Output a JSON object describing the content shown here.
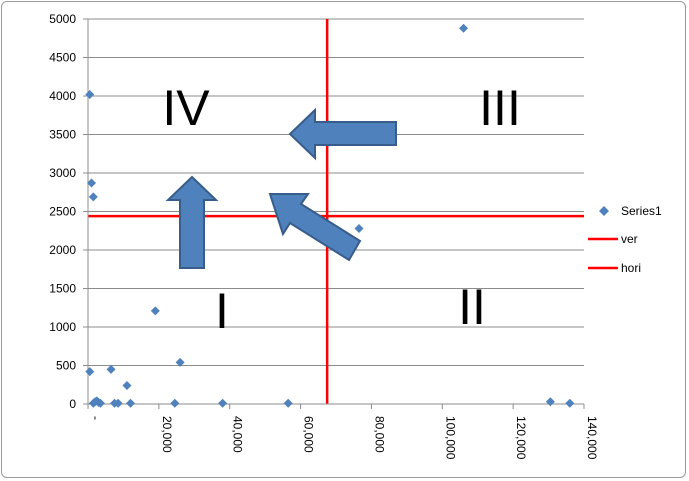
{
  "chart_data": {
    "type": "scatter",
    "title": "",
    "xlabel": "",
    "ylabel": "",
    "xlim": [
      0,
      140000
    ],
    "ylim": [
      0,
      5000
    ],
    "x_ticks": [
      0,
      20000,
      40000,
      60000,
      80000,
      100000,
      120000,
      140000
    ],
    "x_tick_labels": [
      "-",
      "20,000",
      "40,000",
      "60,000",
      "80,000",
      "100,000",
      "120,000",
      "140,000"
    ],
    "y_ticks": [
      0,
      500,
      1000,
      1500,
      2000,
      2500,
      3000,
      3500,
      4000,
      4500,
      5000
    ],
    "y_tick_labels": [
      "0",
      "500",
      "1000",
      "1500",
      "2000",
      "2500",
      "3000",
      "3500",
      "4000",
      "4500",
      "5000"
    ],
    "grid": "horizontal",
    "legend_position": "right",
    "series": [
      {
        "name": "Series1",
        "kind": "scatter",
        "marker": "diamond",
        "color": "#4f81bd",
        "points": [
          [
            500,
            4020
          ],
          [
            1000,
            2870
          ],
          [
            1500,
            2690
          ],
          [
            500,
            420
          ],
          [
            1500,
            10
          ],
          [
            2000,
            30
          ],
          [
            2500,
            40
          ],
          [
            3000,
            20
          ],
          [
            3500,
            10
          ],
          [
            6500,
            450
          ],
          [
            7500,
            10
          ],
          [
            8500,
            10
          ],
          [
            11000,
            240
          ],
          [
            12000,
            10
          ],
          [
            19000,
            1210
          ],
          [
            24500,
            10
          ],
          [
            26000,
            540
          ],
          [
            38000,
            10
          ],
          [
            56500,
            10
          ],
          [
            76500,
            2280
          ],
          [
            106000,
            4880
          ],
          [
            130500,
            30
          ],
          [
            136000,
            10
          ]
        ]
      },
      {
        "name": "ver",
        "kind": "line",
        "color": "#ff0000",
        "x": [
          67500,
          67500
        ],
        "y": [
          0,
          5000
        ]
      },
      {
        "name": "hori",
        "kind": "line",
        "color": "#ff0000",
        "x": [
          0,
          140000
        ],
        "y": [
          2440,
          2440
        ]
      }
    ],
    "quadrant_labels": [
      "I",
      "II",
      "III",
      "IV"
    ],
    "arrow_color": "#4f81bd"
  }
}
